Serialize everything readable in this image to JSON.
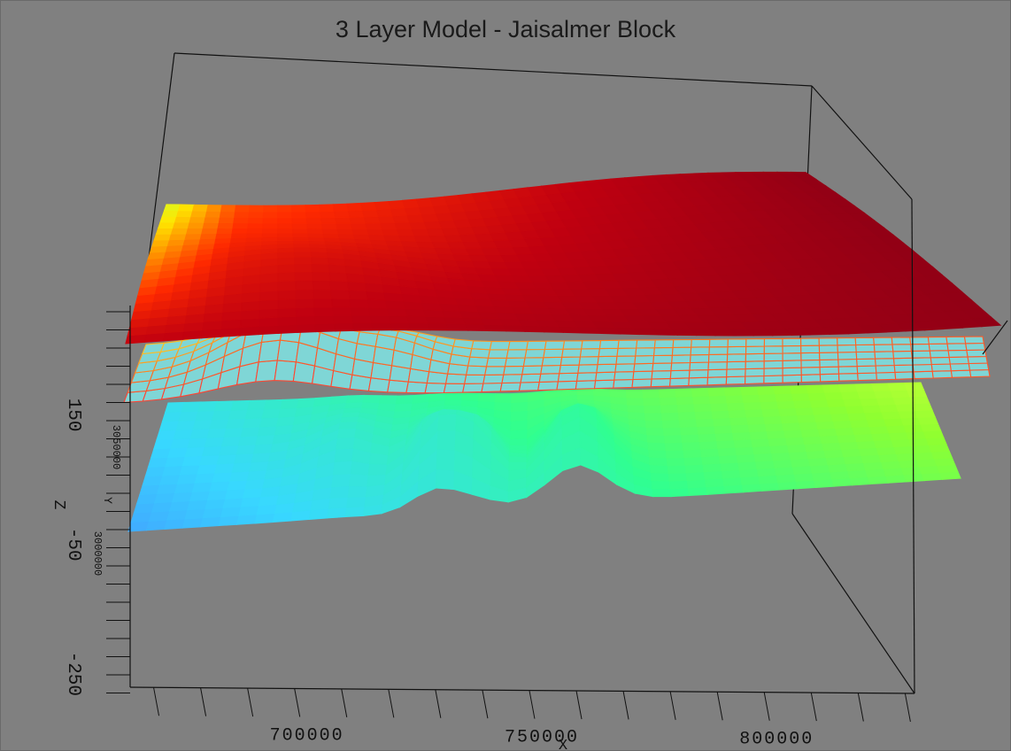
{
  "chart_data": {
    "type": "surface3d",
    "title": "3 Layer Model - Jaisalmer Block",
    "xlabel": "X",
    "ylabel": "Y",
    "zlabel": "Z",
    "x_ticks": [
      700000,
      750000,
      800000
    ],
    "y_ticks": [
      3050000,
      3000000
    ],
    "z_ticks": [
      150,
      -50,
      -250
    ],
    "xlim": [
      665000,
      832000
    ],
    "zlim": [
      -290,
      300
    ],
    "layers": [
      {
        "colormap": [
          "#8b0016",
          "#c00010",
          "#ff2a00",
          "#ff8c00",
          "#ffe600",
          "#c8ff30"
        ],
        "z_mean": 180
      },
      {
        "colormap": [
          "#ff2040",
          "#ff6a20",
          "#ffd020",
          "#f0ff60"
        ],
        "z_mean": 120
      },
      {
        "colormap": [
          "#4c70ff",
          "#38d8ff",
          "#30ff90",
          "#90ff30",
          "#ffff40"
        ],
        "z_mean": 70
      }
    ]
  }
}
